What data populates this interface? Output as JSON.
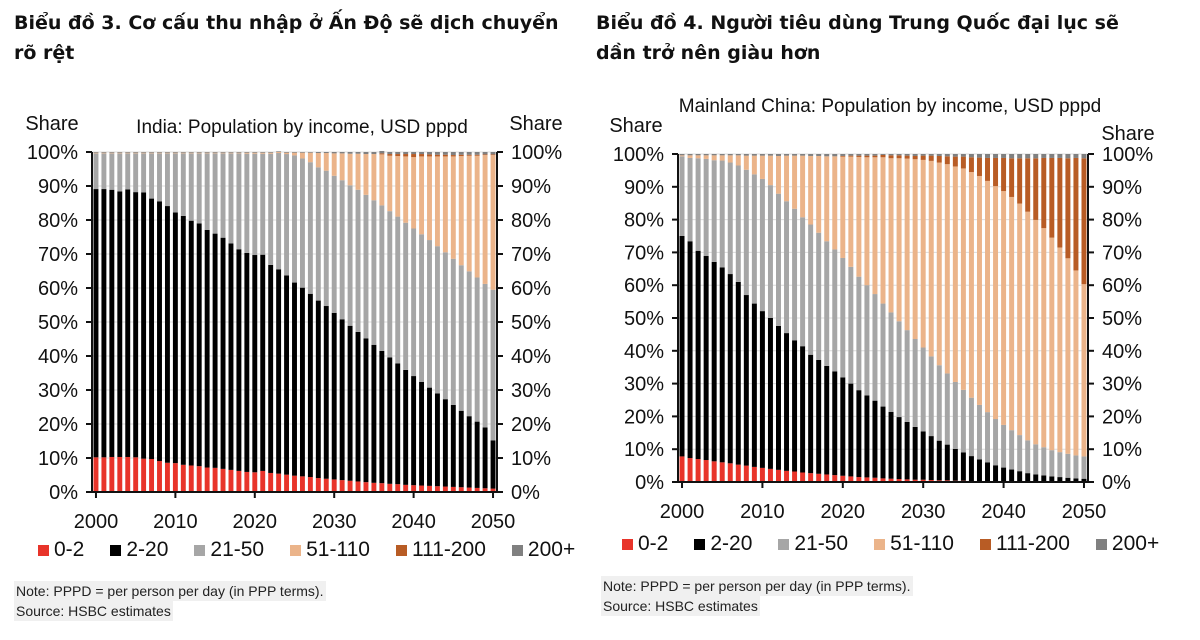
{
  "headings": {
    "left": "Biểu đồ 3. Cơ cấu thu nhập ở Ấn Độ sẽ dịch chuyển rõ rệt",
    "right": "Biểu đồ 4. Người tiêu dùng Trung Quốc đại lục sẽ dần trở nên giàu hơn"
  },
  "legend": [
    {
      "label": "0-2",
      "color": "#e8342a"
    },
    {
      "label": "2-20",
      "color": "#000000"
    },
    {
      "label": "21-50",
      "color": "#a6a6a6"
    },
    {
      "label": "51-110",
      "color": "#ebb48a"
    },
    {
      "label": "111-200",
      "color": "#b85c25"
    },
    {
      "label": "200+",
      "color": "#808080"
    }
  ],
  "notes": {
    "note": "Note: PPPD = per person per day (in PPP terms).",
    "source": "Source: HSBC estimates"
  },
  "chart_data": [
    {
      "type": "bar",
      "stacked": true,
      "title": "India: Population by income, USD pppd",
      "ylabel_left": "Share",
      "ylabel_right": "Share",
      "ylim": [
        0,
        100
      ],
      "yticks": [
        "0%",
        "10%",
        "20%",
        "30%",
        "40%",
        "50%",
        "60%",
        "70%",
        "80%",
        "90%",
        "100%"
      ],
      "xticks": [
        "2000",
        "2010",
        "2020",
        "2030",
        "2040",
        "2050"
      ],
      "x_start": 2000,
      "x_end": 2050,
      "series": [
        {
          "name": "0-2",
          "values": [
            10.2,
            10.2,
            10.3,
            10.3,
            10.3,
            10.2,
            9.8,
            9.7,
            9.1,
            8.6,
            8.5,
            8.0,
            7.8,
            7.6,
            7.2,
            7.1,
            6.8,
            6.5,
            6.2,
            5.9,
            5.8,
            6.2,
            5.6,
            5.4,
            5.1,
            4.8,
            4.6,
            4.4,
            4.1,
            3.9,
            3.7,
            3.5,
            3.3,
            3.1,
            2.9,
            2.7,
            2.6,
            2.4,
            2.3,
            2.1,
            2.0,
            1.9,
            1.8,
            1.7,
            1.6,
            1.5,
            1.4,
            1.3,
            1.2,
            1.1,
            1.0
          ]
        },
        {
          "name": "2-20",
          "values": [
            78.9,
            78.9,
            78.6,
            78.1,
            78.7,
            78.0,
            78.3,
            76.6,
            76.4,
            75.5,
            73.7,
            73.2,
            72.0,
            71.4,
            69.9,
            68.9,
            68.0,
            66.6,
            65.2,
            64.4,
            63.9,
            63.6,
            61.2,
            60.1,
            58.6,
            56.8,
            55.5,
            53.9,
            52.2,
            50.8,
            49.0,
            47.3,
            45.6,
            44.0,
            42.3,
            40.6,
            38.9,
            37.2,
            35.5,
            33.8,
            32.1,
            30.5,
            28.9,
            27.3,
            25.7,
            24.1,
            22.5,
            21.0,
            19.5,
            17.9,
            14.2
          ]
        },
        {
          "name": "21-50",
          "values": [
            10.5,
            10.5,
            10.7,
            11.2,
            10.6,
            11.4,
            11.5,
            13.3,
            14.1,
            15.5,
            17.4,
            18.4,
            19.8,
            20.6,
            22.5,
            23.6,
            24.8,
            26.5,
            28.2,
            29.2,
            29.8,
            29.7,
            32.7,
            34.2,
            35.7,
            37.4,
            38.0,
            38.7,
            39.2,
            39.8,
            40.3,
            40.9,
            41.3,
            41.8,
            42.2,
            42.5,
            42.8,
            43.0,
            43.2,
            43.3,
            43.4,
            43.4,
            43.4,
            43.3,
            43.2,
            43.0,
            42.8,
            42.6,
            42.4,
            42.2,
            44.3
          ]
        },
        {
          "name": "51-110",
          "values": [
            0.2,
            0.2,
            0.2,
            0.2,
            0.2,
            0.2,
            0.2,
            0.2,
            0.2,
            0.2,
            0.2,
            0.2,
            0.2,
            0.2,
            0.2,
            0.2,
            0.2,
            0.2,
            0.2,
            0.3,
            0.3,
            0.3,
            0.3,
            0.3,
            0.4,
            0.8,
            1.7,
            2.8,
            4.2,
            5.2,
            6.6,
            7.9,
            9.3,
            10.6,
            12.0,
            13.6,
            15.0,
            16.3,
            17.8,
            19.5,
            21.0,
            22.9,
            24.6,
            26.4,
            28.2,
            30.1,
            32.1,
            34.0,
            35.8,
            37.9,
            39.6
          ]
        },
        {
          "name": "111-200",
          "values": [
            0,
            0,
            0,
            0,
            0,
            0,
            0,
            0,
            0,
            0,
            0,
            0,
            0,
            0,
            0,
            0,
            0,
            0,
            0,
            0,
            0,
            0,
            0,
            0,
            0,
            0,
            0,
            0,
            0,
            0,
            0,
            0,
            0,
            0,
            0,
            0,
            0.3,
            0.5,
            0.6,
            0.7,
            0.9,
            0.7,
            0.6,
            0.5,
            0.5,
            0.4,
            0.4,
            0.3,
            0.3,
            0.2,
            0.2
          ]
        },
        {
          "name": "200+",
          "values": [
            0.2,
            0.2,
            0.2,
            0.2,
            0.2,
            0.2,
            0.2,
            0.2,
            0.2,
            0.2,
            0.2,
            0.2,
            0.2,
            0.2,
            0.2,
            0.2,
            0.2,
            0.2,
            0.2,
            0.2,
            0.2,
            0.2,
            0.2,
            0.2,
            0.2,
            0.2,
            0.2,
            0.2,
            0.3,
            0.3,
            0.4,
            0.4,
            0.5,
            0.5,
            0.6,
            0.6,
            0.7,
            0.6,
            0.6,
            0.6,
            0.6,
            0.6,
            0.7,
            0.8,
            0.8,
            0.9,
            0.8,
            0.8,
            0.8,
            0.7,
            0.7
          ]
        }
      ]
    },
    {
      "type": "bar",
      "stacked": true,
      "title": "Mainland China: Population by income, USD pppd",
      "ylabel_left": "Share",
      "ylabel_right": "Share",
      "ylim": [
        0,
        100
      ],
      "yticks": [
        "0%",
        "10%",
        "20%",
        "30%",
        "40%",
        "50%",
        "60%",
        "70%",
        "80%",
        "90%",
        "100%"
      ],
      "xticks": [
        "2000",
        "2010",
        "2020",
        "2030",
        "2040",
        "2050"
      ],
      "x_start": 2000,
      "x_end": 2050,
      "series": [
        {
          "name": "0-2",
          "values": [
            7.8,
            7.3,
            7.0,
            6.7,
            6.3,
            6.0,
            5.7,
            5.3,
            5.0,
            4.6,
            4.3,
            4.0,
            3.7,
            3.4,
            3.2,
            2.9,
            2.7,
            2.5,
            2.3,
            2.1,
            1.9,
            1.7,
            1.5,
            1.4,
            1.3,
            1.1,
            1.0,
            0.9,
            0.8,
            0.7,
            0.7,
            0.6,
            0.5,
            0.5,
            0.4,
            0.4,
            0.3,
            0.3,
            0.3,
            0.2,
            0.2,
            0.2,
            0.2,
            0.1,
            0.1,
            0.1,
            0.1,
            0.1,
            0.1,
            0.1,
            0.1
          ]
        },
        {
          "name": "2-20",
          "values": [
            67.2,
            66.1,
            63.5,
            62.2,
            60.8,
            59.4,
            57.7,
            55.7,
            52.0,
            49.8,
            47.8,
            46.0,
            43.9,
            42.0,
            40.0,
            38.5,
            36.1,
            34.7,
            33.1,
            31.6,
            30.0,
            28.3,
            26.5,
            25.0,
            23.5,
            21.9,
            20.4,
            18.9,
            17.5,
            16.1,
            14.7,
            13.4,
            12.1,
            10.9,
            9.7,
            8.6,
            7.6,
            6.6,
            5.7,
            4.9,
            4.2,
            3.6,
            3.1,
            2.6,
            2.2,
            1.9,
            1.6,
            1.4,
            1.2,
            1.0,
            0.9
          ]
        },
        {
          "name": "21-50",
          "values": [
            24.3,
            25.4,
            28.2,
            29.6,
            31.0,
            32.6,
            34.0,
            35.5,
            38.2,
            39.4,
            40.3,
            40.5,
            40.3,
            40.2,
            40.1,
            39.3,
            39.7,
            38.8,
            38.0,
            37.2,
            36.4,
            35.6,
            34.6,
            33.6,
            32.5,
            31.4,
            30.3,
            29.2,
            28.0,
            26.8,
            25.6,
            24.3,
            23.0,
            21.7,
            20.4,
            19.1,
            17.8,
            16.6,
            15.3,
            14.1,
            13.0,
            12.0,
            11.0,
            10.0,
            9.2,
            8.6,
            8.0,
            7.6,
            7.3,
            7.0,
            6.8
          ]
        },
        {
          "name": "51-110",
          "values": [
            0.3,
            0.8,
            0.9,
            1.1,
            1.5,
            1.6,
            2.2,
            3.1,
            4.3,
            5.7,
            7.1,
            9.0,
            11.5,
            13.9,
            16.2,
            18.8,
            20.9,
            23.4,
            25.9,
            28.4,
            30.9,
            33.6,
            36.5,
            39.0,
            41.7,
            44.6,
            47.0,
            49.7,
            52.3,
            54.8,
            57.2,
            59.6,
            61.8,
            63.8,
            65.7,
            67.5,
            68.8,
            69.8,
            70.5,
            71.0,
            71.3,
            71.1,
            70.6,
            69.7,
            68.4,
            66.8,
            64.8,
            62.4,
            59.6,
            56.4,
            52.5
          ]
        },
        {
          "name": "111-200",
          "values": [
            0,
            0,
            0,
            0,
            0,
            0,
            0,
            0,
            0,
            0,
            0,
            0,
            0,
            0,
            0,
            0,
            0,
            0,
            0,
            0,
            0.2,
            0.3,
            0.4,
            0.5,
            0.5,
            0.7,
            0.9,
            0.9,
            0.9,
            1.0,
            1.3,
            1.6,
            2.0,
            2.4,
            3.0,
            3.6,
            4.5,
            5.6,
            7.0,
            8.6,
            10.1,
            11.8,
            13.8,
            16.3,
            18.8,
            21.4,
            24.3,
            27.3,
            30.5,
            34.3,
            38.4
          ]
        },
        {
          "name": "200+",
          "values": [
            0.4,
            0.4,
            0.4,
            0.4,
            0.4,
            0.4,
            0.4,
            0.4,
            0.5,
            0.5,
            0.5,
            0.5,
            0.6,
            0.5,
            0.5,
            0.5,
            0.6,
            0.6,
            0.7,
            0.7,
            0.6,
            0.5,
            0.5,
            0.5,
            0.5,
            0.3,
            0.4,
            0.4,
            0.5,
            0.6,
            0.5,
            0.5,
            0.6,
            0.7,
            0.8,
            0.8,
            1.0,
            1.1,
            1.2,
            1.2,
            1.2,
            1.3,
            1.3,
            1.3,
            1.3,
            1.2,
            1.2,
            1.2,
            1.3,
            1.2,
            1.3
          ]
        }
      ]
    }
  ]
}
